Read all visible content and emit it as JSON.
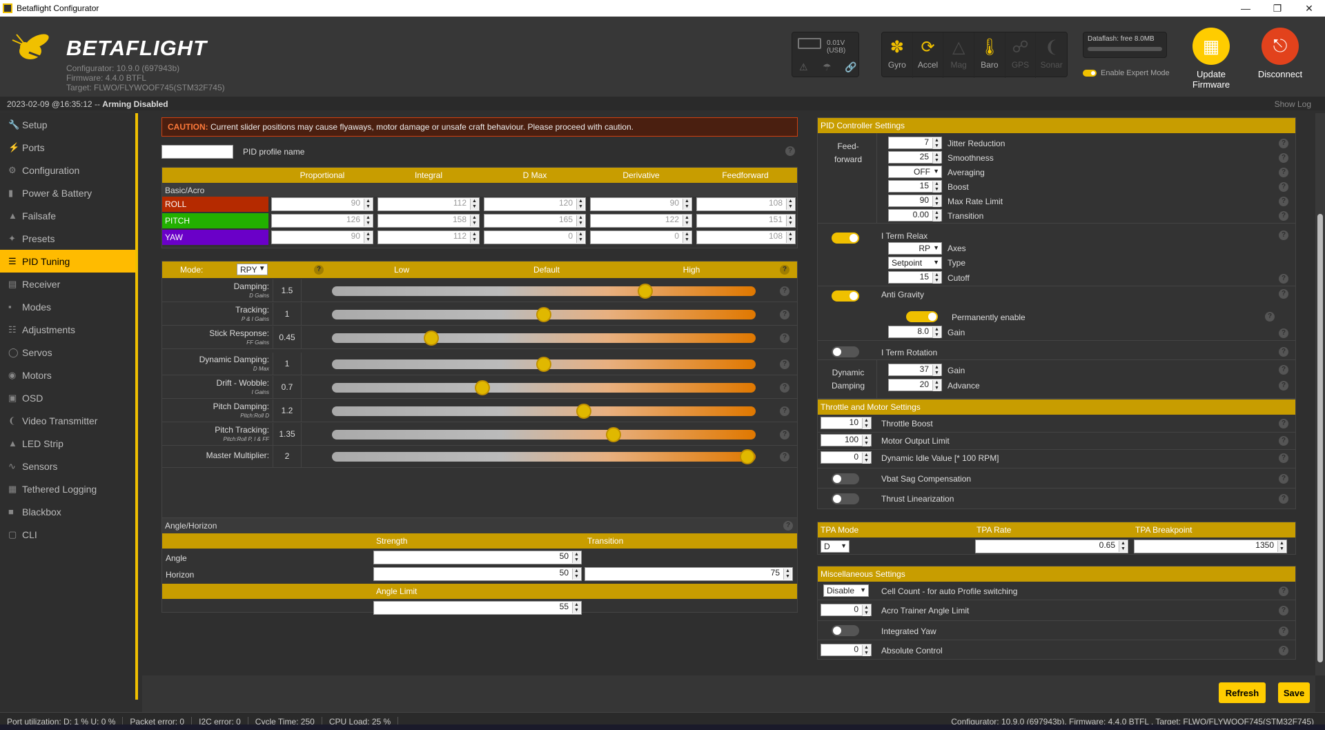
{
  "window": {
    "title": "Betaflight Configurator"
  },
  "header": {
    "brand": "BETAFLIGHT",
    "configurator": "Configurator: 10.9.0 (697943b)",
    "firmware": "Firmware: 4.4.0 BTFL",
    "target": "Target: FLWO/FLYWOOF745(STM32F745)",
    "battery_voltage": "0.01V (USB)",
    "sensors": [
      {
        "label": "Gyro",
        "on": true
      },
      {
        "label": "Accel",
        "on": true
      },
      {
        "label": "Mag",
        "on": false
      },
      {
        "label": "Baro",
        "on": true
      },
      {
        "label": "GPS",
        "on": false
      },
      {
        "label": "Sonar",
        "on": false
      }
    ],
    "dataflash": "Dataflash: free 8.0MB",
    "expert_mode": "Enable Expert Mode",
    "update_firmware": "Update Firmware",
    "disconnect": "Disconnect"
  },
  "status": {
    "datetime": "2023-02-09 @16:35:12",
    "sep": " -- ",
    "arming": "Arming Disabled",
    "show_log": "Show Log"
  },
  "sidebar": {
    "items": [
      "Setup",
      "Ports",
      "Configuration",
      "Power & Battery",
      "Failsafe",
      "Presets",
      "PID Tuning",
      "Receiver",
      "Modes",
      "Adjustments",
      "Servos",
      "Motors",
      "OSD",
      "Video Transmitter",
      "LED Strip",
      "Sensors",
      "Tethered Logging",
      "Blackbox",
      "CLI"
    ],
    "active": "PID Tuning"
  },
  "caution": {
    "label": "CAUTION:",
    "text": " Current slider positions may cause flyaways, motor damage or unsafe craft behaviour. Please proceed with caution."
  },
  "profile": {
    "name_value": "",
    "label": "PID profile name"
  },
  "pid_table": {
    "headers": [
      "Proportional",
      "Integral",
      "D Max",
      "Derivative",
      "Feedforward"
    ],
    "section": "Basic/Acro",
    "rows": [
      {
        "axis": "ROLL",
        "color": "#b52a00",
        "values": [
          "90",
          "112",
          "120",
          "90",
          "108"
        ]
      },
      {
        "axis": "PITCH",
        "color": "#22b000",
        "values": [
          "126",
          "158",
          "165",
          "122",
          "151"
        ]
      },
      {
        "axis": "YAW",
        "color": "#6a00c8",
        "values": [
          "90",
          "112",
          "0",
          "0",
          "108"
        ]
      }
    ]
  },
  "sliders": {
    "mode_label": "Mode:",
    "mode_value": "RPY",
    "cols": [
      "Low",
      "Default",
      "High"
    ],
    "items": [
      {
        "label": "Damping:",
        "sub": "D Gains",
        "value": "1.5",
        "pos": 0.74
      },
      {
        "label": "Tracking:",
        "sub": "P & I Gains",
        "value": "1",
        "pos": 0.5
      },
      {
        "label": "Stick Response:",
        "sub": "FF Gains",
        "value": "0.45",
        "pos": 0.235
      },
      {
        "label": "Dynamic Damping:",
        "sub": "D Max",
        "value": "1",
        "pos": 0.5
      },
      {
        "label": "Drift - Wobble:",
        "sub": "I Gains",
        "value": "0.7",
        "pos": 0.355
      },
      {
        "label": "Pitch Damping:",
        "sub": "Pitch:Roll D",
        "value": "1.2",
        "pos": 0.595
      },
      {
        "label": "Pitch Tracking:",
        "sub": "Pitch:Roll P, I & FF",
        "value": "1.35",
        "pos": 0.665
      },
      {
        "label": "Master Multiplier:",
        "sub": "",
        "value": "2",
        "pos": 0.98
      }
    ]
  },
  "angle": {
    "title": "Angle/Horizon",
    "strength": "Strength",
    "transition": "Transition",
    "angle_label": "Angle",
    "angle_strength": "50",
    "horizon_label": "Horizon",
    "horizon_strength": "50",
    "horizon_transition": "75",
    "angle_limit_label": "Angle Limit",
    "angle_limit": "55"
  },
  "pid_settings": {
    "title": "PID Controller Settings",
    "feedforward": "Feed-forward",
    "ff_items": [
      {
        "value": "7",
        "label": "Jitter Reduction"
      },
      {
        "value": "25",
        "label": "Smoothness"
      },
      {
        "value": "OFF",
        "label": "Averaging",
        "select": true
      },
      {
        "value": "15",
        "label": "Boost"
      },
      {
        "value": "90",
        "label": "Max Rate Limit"
      },
      {
        "value": "0.00",
        "label": "Transition"
      }
    ],
    "iterm_relax": "I Term Relax",
    "axes_value": "RP",
    "axes_label": "Axes",
    "type_value": "Setpoint",
    "type_label": "Type",
    "cutoff_value": "15",
    "cutoff_label": "Cutoff",
    "anti_gravity": "Anti Gravity",
    "perm_enable": "Permanently enable",
    "ag_gain": "8.0",
    "ag_gain_label": "Gain",
    "iterm_rotation": "I Term Rotation",
    "dyn_damping": "Dynamic Damping",
    "dd_gain": "37",
    "dd_gain_label": "Gain",
    "dd_advance": "20",
    "dd_advance_label": "Advance"
  },
  "throttle": {
    "title": "Throttle and Motor Settings",
    "items": [
      {
        "value": "10",
        "label": "Throttle Boost"
      },
      {
        "value": "100",
        "label": "Motor Output Limit"
      },
      {
        "value": "0",
        "label": "Dynamic Idle Value [* 100 RPM]"
      }
    ],
    "vbat": "Vbat Sag Compensation",
    "thrust": "Thrust Linearization"
  },
  "tpa": {
    "mode_label": "TPA Mode",
    "rate_label": "TPA Rate",
    "bp_label": "TPA Breakpoint",
    "mode": "D",
    "rate": "0.65",
    "bp": "1350"
  },
  "misc": {
    "title": "Miscellaneous Settings",
    "cell_value": "Disable",
    "cell_label": "Cell Count - for auto Profile switching",
    "acro_value": "0",
    "acro_label": "Acro Trainer Angle Limit",
    "yaw_label": "Integrated Yaw",
    "abs_value": "0",
    "abs_label": "Absolute Control"
  },
  "buttons": {
    "refresh": "Refresh",
    "save": "Save"
  },
  "footer": {
    "port": "Port utilization: D: 1 % U: 0 %",
    "packet": "Packet error: 0",
    "i2c": "I2C error: 0",
    "cycle": "Cycle Time: 250",
    "cpu": "CPU Load: 25 %",
    "info": "Configurator: 10.9.0 (697943b), Firmware: 4.4.0 BTFL , Target: FLWO/FLYWOOF745(STM32F745)"
  }
}
